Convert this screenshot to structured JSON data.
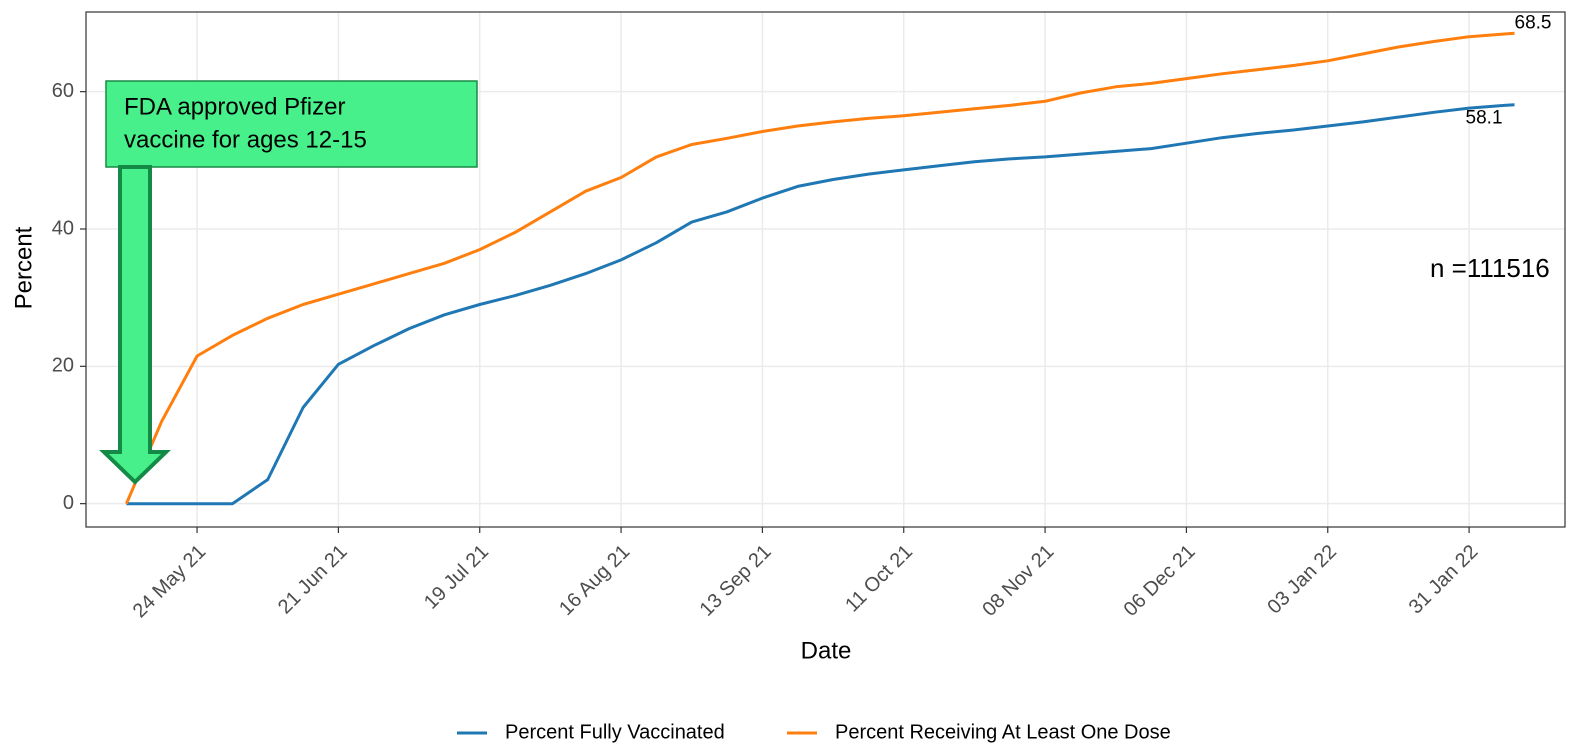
{
  "chart_data": {
    "type": "line",
    "x_label": "Date",
    "y_label": "Percent",
    "x": [
      "2021-05-10",
      "2021-05-17",
      "2021-05-24",
      "2021-05-31",
      "2021-06-07",
      "2021-06-14",
      "2021-06-21",
      "2021-06-28",
      "2021-07-05",
      "2021-07-12",
      "2021-07-19",
      "2021-07-26",
      "2021-08-02",
      "2021-08-09",
      "2021-08-16",
      "2021-08-23",
      "2021-08-30",
      "2021-09-06",
      "2021-09-13",
      "2021-09-20",
      "2021-09-27",
      "2021-10-04",
      "2021-10-11",
      "2021-10-18",
      "2021-10-25",
      "2021-11-01",
      "2021-11-08",
      "2021-11-15",
      "2021-11-22",
      "2021-11-29",
      "2021-12-06",
      "2021-12-13",
      "2021-12-20",
      "2021-12-27",
      "2022-01-03",
      "2022-01-10",
      "2022-01-17",
      "2022-01-24",
      "2022-01-31",
      "2022-02-07",
      "2022-02-09"
    ],
    "series": [
      {
        "name": "Percent Fully Vaccinated",
        "color": "#1f77b4",
        "values": [
          0,
          0,
          0,
          0,
          3.5,
          14,
          20.3,
          23,
          25.5,
          27.5,
          29,
          30.3,
          31.8,
          33.5,
          35.5,
          38,
          41,
          42.5,
          44.5,
          46.2,
          47.2,
          48,
          48.6,
          49.2,
          49.8,
          50.2,
          50.5,
          50.9,
          51.3,
          51.7,
          52.5,
          53.3,
          53.9,
          54.4,
          55,
          55.6,
          56.3,
          57,
          57.6,
          58,
          58.1
        ]
      },
      {
        "name": "Percent Receiving At Least One Dose",
        "color": "#ff7f0e",
        "values": [
          0,
          12,
          21.5,
          24.5,
          27,
          29,
          30.5,
          32,
          33.5,
          35,
          37,
          39.5,
          42.5,
          45.5,
          47.5,
          50.5,
          52.3,
          53.2,
          54.2,
          55,
          55.6,
          56.1,
          56.5,
          57,
          57.5,
          58,
          58.6,
          59.8,
          60.7,
          61.2,
          61.9,
          62.6,
          63.2,
          63.8,
          64.5,
          65.5,
          66.5,
          67.3,
          68,
          68.4,
          68.5
        ]
      }
    ],
    "xlim": [
      "2021-05-02",
      "2022-02-19"
    ],
    "xticks": [
      {
        "value": "2021-05-24",
        "label": "24 May 21"
      },
      {
        "value": "2021-06-21",
        "label": "21 Jun 21"
      },
      {
        "value": "2021-07-19",
        "label": "19 Jul 21"
      },
      {
        "value": "2021-08-16",
        "label": "16 Aug 21"
      },
      {
        "value": "2021-09-13",
        "label": "13 Sep 21"
      },
      {
        "value": "2021-10-11",
        "label": "11 Oct 21"
      },
      {
        "value": "2021-11-08",
        "label": "08 Nov 21"
      },
      {
        "value": "2021-12-06",
        "label": "06 Dec 21"
      },
      {
        "value": "2022-01-03",
        "label": "03 Jan 22"
      },
      {
        "value": "2022-01-31",
        "label": "31 Jan 22"
      }
    ],
    "ylim": [
      -3.4,
      71.6
    ],
    "yticks": [
      0,
      20,
      40,
      60
    ],
    "grid": true,
    "legend": "bottom",
    "annotations": {
      "arrow_text": [
        "FDA approved Pfizer",
        "vaccine for ages 12-15"
      ],
      "sample": "n =111516"
    }
  }
}
